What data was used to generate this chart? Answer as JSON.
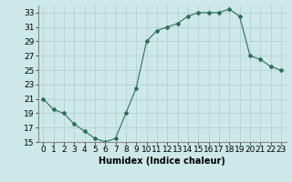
{
  "x": [
    0,
    1,
    2,
    3,
    4,
    5,
    6,
    7,
    8,
    9,
    10,
    11,
    12,
    13,
    14,
    15,
    16,
    17,
    18,
    19,
    20,
    21,
    22,
    23
  ],
  "y": [
    21,
    19.5,
    19,
    17.5,
    16.5,
    15.5,
    15,
    15.5,
    19,
    22.5,
    29,
    30.5,
    31,
    31.5,
    32.5,
    33,
    33,
    33,
    33.5,
    32.5,
    27,
    26.5,
    25.5,
    25
  ],
  "line_color": "#2d6e5e",
  "marker": "D",
  "marker_size": 2,
  "bg_color": "#cce8e8",
  "grid_color": "#b0cccc",
  "xlabel": "Humidex (Indice chaleur)",
  "xlim": [
    -0.5,
    23.5
  ],
  "ylim": [
    15,
    34
  ],
  "yticks": [
    15,
    17,
    19,
    21,
    23,
    25,
    27,
    29,
    31,
    33
  ],
  "xtick_labels": [
    "0",
    "1",
    "2",
    "3",
    "4",
    "5",
    "6",
    "7",
    "8",
    "9",
    "10",
    "11",
    "12",
    "13",
    "14",
    "15",
    "16",
    "17",
    "18",
    "19",
    "20",
    "21",
    "22",
    "23"
  ],
  "xlabel_fontsize": 7,
  "tick_fontsize": 6.5
}
